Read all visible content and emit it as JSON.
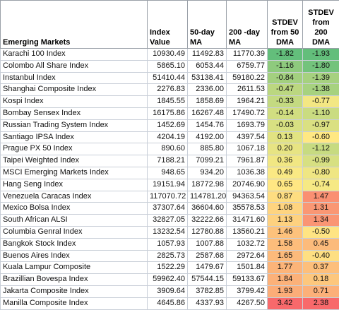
{
  "table": {
    "headers": [
      "Emerging Markets",
      "Index Value",
      "50-day MA",
      "200 -day MA",
      "STDEV from 50 DMA",
      "STDEV from 200 DMA"
    ],
    "rows": [
      [
        "Karachi 100 Index",
        "10930.49",
        "11492.83",
        "11770.39",
        "-1.82",
        "-1.93"
      ],
      [
        "Colombo All Share Index",
        "5865.10",
        "6053.44",
        "6759.77",
        "-1.16",
        "-1.80"
      ],
      [
        "Instanbul Index",
        "51410.44",
        "53138.41",
        "59180.22",
        "-0.84",
        "-1.39"
      ],
      [
        "Shanghai Composite Index",
        "2276.83",
        "2336.00",
        "2611.53",
        "-0.47",
        "-1.38"
      ],
      [
        "Kospi Index",
        "1845.55",
        "1858.69",
        "1964.21",
        "-0.33",
        "-0.77"
      ],
      [
        "Bombay Sensex Index",
        "16175.86",
        "16267.48",
        "17490.72",
        "-0.14",
        "-1.10"
      ],
      [
        "Russian Trading System Index",
        "1452.69",
        "1454.76",
        "1693.79",
        "-0.03",
        "-0.97"
      ],
      [
        "Santiago IPSA Index",
        "4204.19",
        "4192.00",
        "4397.54",
        "0.13",
        "-0.60"
      ],
      [
        "Prague PX 50 Index",
        "890.60",
        "885.80",
        "1067.18",
        "0.20",
        "-1.12"
      ],
      [
        "Taipei Weighted Index",
        "7188.21",
        "7099.21",
        "7961.87",
        "0.36",
        "-0.99"
      ],
      [
        "MSCI Emerging Markets Index",
        "948.65",
        "934.20",
        "1036.38",
        "0.49",
        "-0.80"
      ],
      [
        "Hang Seng Index",
        "19151.94",
        "18772.98",
        "20746.90",
        "0.65",
        "-0.74"
      ],
      [
        "Venezuela Caracas Index",
        "117070.72",
        "114781.20",
        "94363.54",
        "0.87",
        "1.47"
      ],
      [
        "Mexico Bolsa Index",
        "37307.64",
        "36604.60",
        "35578.53",
        "1.08",
        "1.31"
      ],
      [
        "South African ALSI",
        "32827.05",
        "32222.66",
        "31471.60",
        "1.13",
        "1.34"
      ],
      [
        "Columbia Genral Index",
        "13232.54",
        "12780.88",
        "13560.21",
        "1.46",
        "-0.50"
      ],
      [
        "Bangkok Stock Index",
        "1057.93",
        "1007.88",
        "1032.72",
        "1.58",
        "0.45"
      ],
      [
        "Buenos Aires Index",
        "2825.73",
        "2587.68",
        "2972.64",
        "1.65",
        "-0.40"
      ],
      [
        "Kuala Lampur Composite",
        "1522.29",
        "1479.67",
        "1501.84",
        "1.77",
        "0.37"
      ],
      [
        "Brazillian Bovespa Index",
        "59962.40",
        "57544.15",
        "59133.67",
        "1.84",
        "0.18"
      ],
      [
        "Jakarta Composite Index",
        "3909.64",
        "3782.85",
        "3799.42",
        "1.93",
        "0.71"
      ],
      [
        "Manilla Composite Index",
        "4645.86",
        "4337.93",
        "4267.50",
        "3.42",
        "2.38"
      ]
    ]
  }
}
